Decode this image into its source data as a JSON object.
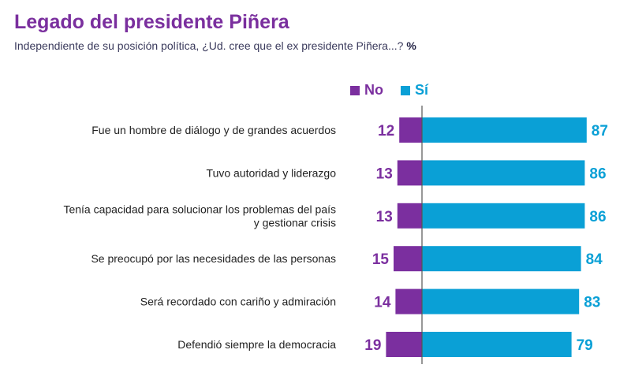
{
  "title": "Legado del presidente Piñera",
  "subtitle": "Independiente de su posición política, ¿Ud. cree que el ex presidente Piñera...?",
  "unit": "%",
  "colors": {
    "title": "#7a2f9e",
    "no": "#7b2f9f",
    "si": "#0aa0d6"
  },
  "chart_data": {
    "type": "bar",
    "orientation": "horizontal-diverging",
    "title": "Legado del presidente Piñera",
    "subtitle": "Independiente de su posición política, ¿Ud. cree que el ex presidente Piñera...?",
    "legend_position": "top",
    "categories": [
      [
        "Fue un hombre de diálogo y de grandes acuerdos"
      ],
      [
        "Tuvo autoridad y liderazgo"
      ],
      [
        "Tenía capacidad para solucionar los problemas del país",
        "y gestionar crisis"
      ],
      [
        "Se preocupó por las necesidades de las personas"
      ],
      [
        "Será recordado con cariño y admiración"
      ],
      [
        "Defendió siempre la democracia"
      ]
    ],
    "series": [
      {
        "name": "No",
        "values": [
          12,
          13,
          13,
          15,
          14,
          19
        ]
      },
      {
        "name": "Sí",
        "values": [
          87,
          86,
          86,
          84,
          83,
          79
        ]
      }
    ]
  }
}
